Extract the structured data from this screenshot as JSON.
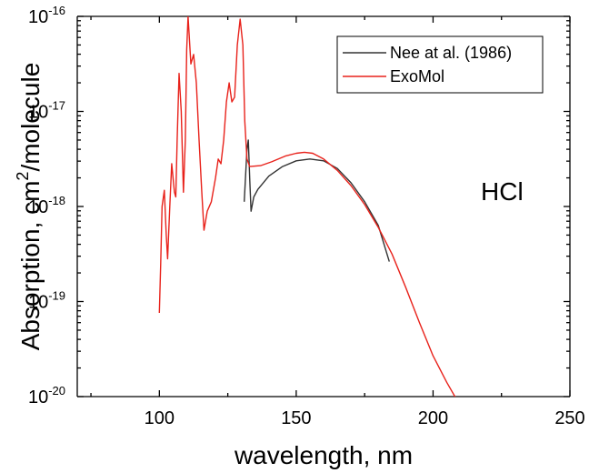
{
  "chart_data": {
    "type": "line",
    "xlabel": "wavelength, nm",
    "ylabel_main": "Absorption, cm",
    "ylabel_sup": "2",
    "ylabel_rest": "/molecule",
    "x_range": [
      70,
      250
    ],
    "y_range_log10": [
      -20,
      -16
    ],
    "y_scale": "log",
    "x_ticks": [
      {
        "value": 100,
        "label": "100"
      },
      {
        "value": 150,
        "label": "150"
      },
      {
        "value": 200,
        "label": "200"
      },
      {
        "value": 250,
        "label": "250"
      }
    ],
    "y_ticks": [
      {
        "exp": -20,
        "base": "10",
        "sup": "-20"
      },
      {
        "exp": -19,
        "base": "10",
        "sup": "-19"
      },
      {
        "exp": -18,
        "base": "10",
        "sup": "-18"
      },
      {
        "exp": -17,
        "base": "10",
        "sup": "-17"
      },
      {
        "exp": -16,
        "base": "10",
        "sup": "-16"
      }
    ],
    "legend_position": "top-right",
    "annotation": "HCl",
    "series": [
      {
        "name": "Nee at al. (1986)",
        "color": "#333333",
        "points": [
          [
            131,
            -17.95
          ],
          [
            132,
            -17.4
          ],
          [
            132.5,
            -17.3
          ],
          [
            133,
            -17.7
          ],
          [
            133.5,
            -18.05
          ],
          [
            134.5,
            -17.9
          ],
          [
            136,
            -17.82
          ],
          [
            140,
            -17.68
          ],
          [
            145,
            -17.58
          ],
          [
            150,
            -17.52
          ],
          [
            155,
            -17.5
          ],
          [
            160,
            -17.52
          ],
          [
            165,
            -17.6
          ],
          [
            170,
            -17.75
          ],
          [
            175,
            -17.95
          ],
          [
            180,
            -18.2
          ],
          [
            184,
            -18.58
          ]
        ]
      },
      {
        "name": "ExoMol",
        "color": "#e8221b",
        "points": [
          [
            100,
            -19.12
          ],
          [
            100.5,
            -18.6
          ],
          [
            101,
            -18.0
          ],
          [
            101.8,
            -17.83
          ],
          [
            102.5,
            -18.3
          ],
          [
            103,
            -18.55
          ],
          [
            103.8,
            -18.0
          ],
          [
            104.5,
            -17.55
          ],
          [
            105.5,
            -17.85
          ],
          [
            106,
            -17.9
          ],
          [
            106.5,
            -17.3
          ],
          [
            107.2,
            -16.6
          ],
          [
            108,
            -17.0
          ],
          [
            108.8,
            -17.85
          ],
          [
            109.5,
            -17.3
          ],
          [
            110,
            -16.35
          ],
          [
            110.5,
            -16.0
          ],
          [
            111.5,
            -16.5
          ],
          [
            112.5,
            -16.4
          ],
          [
            113.5,
            -16.7
          ],
          [
            114.5,
            -17.3
          ],
          [
            115.5,
            -17.85
          ],
          [
            116.3,
            -18.25
          ],
          [
            117.5,
            -18.05
          ],
          [
            119,
            -17.95
          ],
          [
            120.5,
            -17.7
          ],
          [
            121.5,
            -17.5
          ],
          [
            122.5,
            -17.55
          ],
          [
            123.5,
            -17.3
          ],
          [
            124.5,
            -16.9
          ],
          [
            125.5,
            -16.7
          ],
          [
            126.5,
            -16.9
          ],
          [
            127.5,
            -16.85
          ],
          [
            128.5,
            -16.3
          ],
          [
            129.5,
            -16.03
          ],
          [
            130.5,
            -16.3
          ],
          [
            131.2,
            -17.1
          ],
          [
            132,
            -17.5
          ],
          [
            133,
            -17.58
          ],
          [
            137,
            -17.57
          ],
          [
            141,
            -17.53
          ],
          [
            146,
            -17.47
          ],
          [
            150,
            -17.44
          ],
          [
            153,
            -17.43
          ],
          [
            156,
            -17.44
          ],
          [
            160,
            -17.5
          ],
          [
            165,
            -17.62
          ],
          [
            170,
            -17.78
          ],
          [
            175,
            -17.98
          ],
          [
            180,
            -18.22
          ],
          [
            185,
            -18.5
          ],
          [
            190,
            -18.85
          ],
          [
            195,
            -19.22
          ],
          [
            200,
            -19.57
          ],
          [
            205,
            -19.85
          ],
          [
            209,
            -20.05
          ]
        ]
      }
    ]
  }
}
